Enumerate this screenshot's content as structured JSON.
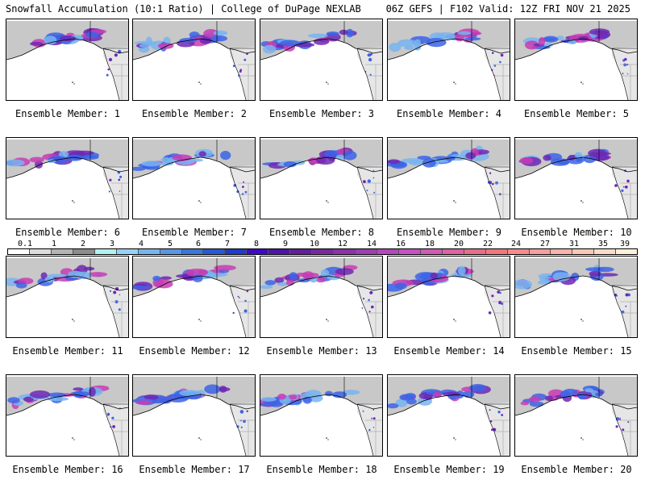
{
  "header": {
    "left_title": "Snowfall Accumulation (10:1 Ratio) | College of DuPage NEXLAB",
    "right_title": "06Z GEFS | F102 Valid: 12Z FRI NOV 21 2025"
  },
  "member_prefix": "Ensemble Member:",
  "members": [
    {
      "number": "1"
    },
    {
      "number": "2"
    },
    {
      "number": "3"
    },
    {
      "number": "4"
    },
    {
      "number": "5"
    },
    {
      "number": "6"
    },
    {
      "number": "7"
    },
    {
      "number": "8"
    },
    {
      "number": "9"
    },
    {
      "number": "10"
    },
    {
      "number": "11"
    },
    {
      "number": "12"
    },
    {
      "number": "13"
    },
    {
      "number": "14"
    },
    {
      "number": "15"
    },
    {
      "number": "16"
    },
    {
      "number": "17"
    },
    {
      "number": "18"
    },
    {
      "number": "19"
    },
    {
      "number": "20"
    }
  ],
  "colorbar": {
    "labels": [
      "0.1",
      "1",
      "2",
      "3",
      "4",
      "5",
      "6",
      "7",
      "8",
      "9",
      "10",
      "12",
      "14",
      "16",
      "18",
      "20",
      "22",
      "24",
      "27",
      "31",
      "35",
      "39"
    ],
    "colors": [
      "#ffffff",
      "#dcdcdc",
      "#b4b4b4",
      "#8c8c8c",
      "#b4f0f0",
      "#96d2fa",
      "#78b4f0",
      "#5a96e6",
      "#3c78dc",
      "#285ad2",
      "#1e3cc8",
      "#3c0ac8",
      "#5014aa",
      "#641e9b",
      "#7828a0",
      "#8c32aa",
      "#a03cb4",
      "#b446be",
      "#c850c8",
      "#d25ab4",
      "#dc64a0",
      "#e66e8c",
      "#f0787d",
      "#f58c8c",
      "#f5a0a0",
      "#fab4aa",
      "#fac8b9",
      "#fadcc8",
      "#fff0dc"
    ]
  },
  "map_colors": {
    "land_grey": "#c8c8c8",
    "land_dark": "#969696",
    "snow_blue": "#3c64e6",
    "snow_light": "#78b4f0",
    "snow_purple": "#6e28b4",
    "snow_magenta": "#c83cb4",
    "outline": "#000000"
  }
}
